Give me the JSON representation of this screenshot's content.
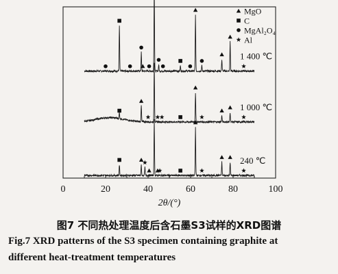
{
  "chart_data": {
    "type": "line",
    "x_label": "2θ/(°)",
    "xlim": [
      0,
      100
    ],
    "x_ticks": [
      0,
      20,
      40,
      60,
      80,
      100
    ],
    "ylim": [
      0,
      3.2
    ],
    "grid": false,
    "legend": {
      "position": "top-right",
      "entries": [
        {
          "symbol": "triangle",
          "label": "MgO"
        },
        {
          "symbol": "square",
          "label": "C"
        },
        {
          "symbol": "circle",
          "label": "MgAl₂O₄"
        },
        {
          "symbol": "star",
          "label": "Al"
        }
      ]
    },
    "series": [
      {
        "name": "1 400 ℃",
        "baseline": 2.0,
        "peaks": [
          {
            "x": 26.5,
            "h": 0.85
          },
          {
            "x": 36.8,
            "h": 0.35
          },
          {
            "x": 42.9,
            "h": 1.6
          },
          {
            "x": 45.0,
            "h": 0.12
          },
          {
            "x": 55.2,
            "h": 0.1
          },
          {
            "x": 62.3,
            "h": 1.05
          },
          {
            "x": 65.3,
            "h": 0.1
          },
          {
            "x": 74.7,
            "h": 0.22
          },
          {
            "x": 78.6,
            "h": 0.55
          }
        ],
        "markers": [
          {
            "x": 20.0,
            "symbol": "circle"
          },
          {
            "x": 26.5,
            "symbol": "square"
          },
          {
            "x": 31.5,
            "symbol": "circle"
          },
          {
            "x": 36.8,
            "symbol": "circle"
          },
          {
            "x": 37.5,
            "symbol": "triangle"
          },
          {
            "x": 40.5,
            "symbol": "circle"
          },
          {
            "x": 42.9,
            "symbol": "triangle"
          },
          {
            "x": 45.0,
            "symbol": "circle"
          },
          {
            "x": 47.0,
            "symbol": "circle"
          },
          {
            "x": 55.2,
            "symbol": "square"
          },
          {
            "x": 59.8,
            "symbol": "circle"
          },
          {
            "x": 62.3,
            "symbol": "triangle"
          },
          {
            "x": 65.3,
            "symbol": "circle"
          },
          {
            "x": 74.7,
            "symbol": "triangle"
          },
          {
            "x": 78.6,
            "symbol": "triangle"
          },
          {
            "x": 85.0,
            "symbol": "star"
          }
        ]
      },
      {
        "name": "1 000 ℃",
        "baseline": 1.05,
        "peaks": [
          {
            "x": 26.5,
            "h": 0.12
          },
          {
            "x": 36.8,
            "h": 0.3
          },
          {
            "x": 42.9,
            "h": 1.1
          },
          {
            "x": 62.3,
            "h": 0.55
          },
          {
            "x": 74.7,
            "h": 0.12
          },
          {
            "x": 78.6,
            "h": 0.18
          }
        ],
        "markers": [
          {
            "x": 26.5,
            "symbol": "square"
          },
          {
            "x": 36.8,
            "symbol": "triangle"
          },
          {
            "x": 40.0,
            "symbol": "star"
          },
          {
            "x": 44.5,
            "symbol": "star"
          },
          {
            "x": 46.5,
            "symbol": "star"
          },
          {
            "x": 55.2,
            "symbol": "square"
          },
          {
            "x": 62.3,
            "symbol": "triangle"
          },
          {
            "x": 65.3,
            "symbol": "star"
          },
          {
            "x": 74.7,
            "symbol": "triangle"
          },
          {
            "x": 78.6,
            "symbol": "triangle"
          },
          {
            "x": 85.0,
            "symbol": "star"
          }
        ]
      },
      {
        "name": "240 ℃",
        "baseline": 0.05,
        "peaks": [
          {
            "x": 26.5,
            "h": 0.2
          },
          {
            "x": 36.8,
            "h": 0.2
          },
          {
            "x": 38.5,
            "h": 0.15
          },
          {
            "x": 42.9,
            "h": 1.05
          },
          {
            "x": 62.3,
            "h": 0.9
          },
          {
            "x": 74.7,
            "h": 0.25
          },
          {
            "x": 78.6,
            "h": 0.25
          }
        ],
        "markers": [
          {
            "x": 26.5,
            "symbol": "square"
          },
          {
            "x": 36.8,
            "symbol": "triangle"
          },
          {
            "x": 38.5,
            "symbol": "star"
          },
          {
            "x": 40.5,
            "symbol": "triangle"
          },
          {
            "x": 44.5,
            "symbol": "triangle"
          },
          {
            "x": 45.5,
            "symbol": "star"
          },
          {
            "x": 55.2,
            "symbol": "square"
          },
          {
            "x": 62.3,
            "symbol": "triangle"
          },
          {
            "x": 65.3,
            "symbol": "star"
          },
          {
            "x": 74.7,
            "symbol": "triangle"
          },
          {
            "x": 78.6,
            "symbol": "triangle"
          },
          {
            "x": 85.0,
            "symbol": "star"
          }
        ]
      }
    ]
  },
  "caption": {
    "chinese": "图7 不同热处理温度后含石墨S3试样的XRD图谱",
    "english_line1": "Fig.7  XRD patterns of the S3 specimen containing graphite at",
    "english_line2": "different heat-treatment temperatures"
  }
}
